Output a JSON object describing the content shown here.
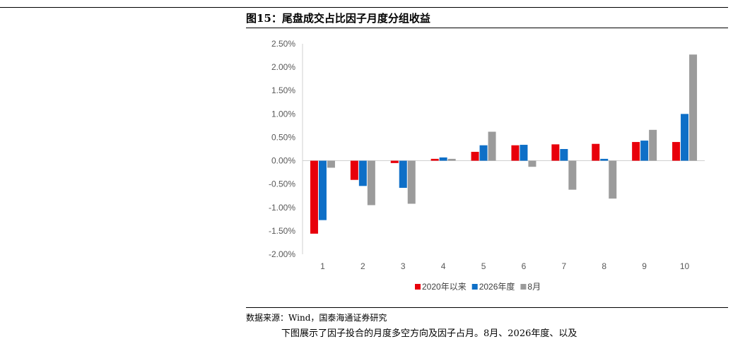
{
  "figure": {
    "title": "图15：尾盘成交占比因子月度分组收益",
    "source": "数据来源：Wind，国泰海通证券研究",
    "body_text": "下图展示了因子投合的月度多空方向及因子占月。8月、2026年度、以及"
  },
  "colors": {
    "series_1": "#e8000b",
    "series_2": "#0e6fc7",
    "series_3": "#9b9b9b"
  },
  "chart_data": {
    "type": "bar",
    "categories": [
      "1",
      "2",
      "3",
      "4",
      "5",
      "6",
      "7",
      "8",
      "9",
      "10"
    ],
    "series": [
      {
        "name": "2020年以来",
        "values": [
          -1.56,
          -0.41,
          -0.05,
          0.04,
          0.19,
          0.33,
          0.35,
          0.36,
          0.4,
          0.4
        ]
      },
      {
        "name": "2026年度",
        "values": [
          -1.27,
          -0.54,
          -0.58,
          0.07,
          0.33,
          0.34,
          0.25,
          0.04,
          0.43,
          1.0
        ]
      },
      {
        "name": "8月",
        "values": [
          -0.15,
          -0.95,
          -0.92,
          0.04,
          0.62,
          -0.13,
          -0.62,
          -0.81,
          0.66,
          2.27
        ]
      }
    ],
    "ylim": [
      -2.0,
      2.5
    ],
    "yticks": [
      -2.0,
      -1.5,
      -1.0,
      -0.5,
      0.0,
      0.5,
      1.0,
      1.5,
      2.0,
      2.5
    ],
    "ytick_labels": [
      "-2.00%",
      "-1.50%",
      "-1.00%",
      "-0.50%",
      "0.00%",
      "0.50%",
      "1.00%",
      "1.50%",
      "2.00%",
      "2.50%"
    ],
    "grid": false,
    "legend_position": "bottom-center"
  }
}
